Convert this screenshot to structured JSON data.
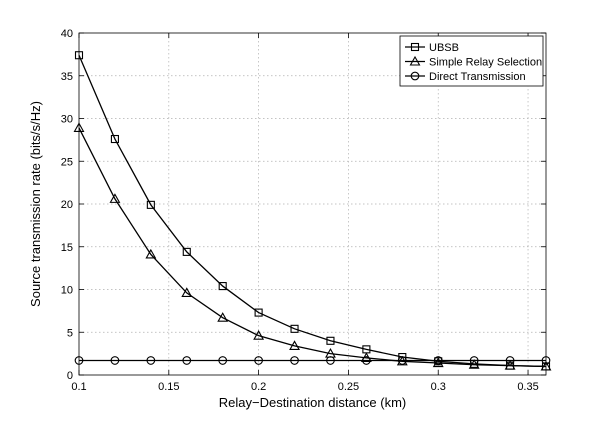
{
  "chart_data": {
    "type": "line",
    "xlabel": "Relay−Destination distance (km)",
    "ylabel": "Source transmission rate (bits/s/Hz)",
    "xlim": [
      0.1,
      0.36
    ],
    "ylim": [
      0,
      40
    ],
    "xticks": [
      "0.1",
      "0.15",
      "0.2",
      "0.25",
      "0.3",
      "0.35"
    ],
    "xtick_values": [
      0.1,
      0.15,
      0.2,
      0.25,
      0.3,
      0.35
    ],
    "yticks": [
      "0",
      "5",
      "10",
      "15",
      "20",
      "25",
      "30",
      "35",
      "40"
    ],
    "ytick_values": [
      0,
      5,
      10,
      15,
      20,
      25,
      30,
      35,
      40
    ],
    "grid": true,
    "legend_position": "top-right",
    "x": [
      0.1,
      0.12,
      0.14,
      0.16,
      0.18,
      0.2,
      0.22,
      0.24,
      0.26,
      0.28,
      0.3,
      0.32,
      0.34,
      0.36
    ],
    "series": [
      {
        "name": "UBSB",
        "marker": "square",
        "values": [
          37.4,
          27.6,
          19.9,
          14.4,
          10.4,
          7.3,
          5.4,
          4.0,
          3.0,
          2.1,
          1.6,
          1.3,
          1.1,
          1.0
        ]
      },
      {
        "name": "Simple Relay Selection",
        "marker": "triangle",
        "values": [
          28.9,
          20.6,
          14.1,
          9.6,
          6.7,
          4.6,
          3.4,
          2.5,
          2.0,
          1.6,
          1.4,
          1.2,
          1.1,
          1.0
        ]
      },
      {
        "name": "Direct Transmission",
        "marker": "circle",
        "values": [
          1.7,
          1.7,
          1.7,
          1.7,
          1.7,
          1.7,
          1.7,
          1.7,
          1.7,
          1.7,
          1.7,
          1.7,
          1.7,
          1.7
        ]
      }
    ]
  },
  "colors": {
    "line": "#000000",
    "grid": "#b0b0b0",
    "background": "#ffffff"
  }
}
